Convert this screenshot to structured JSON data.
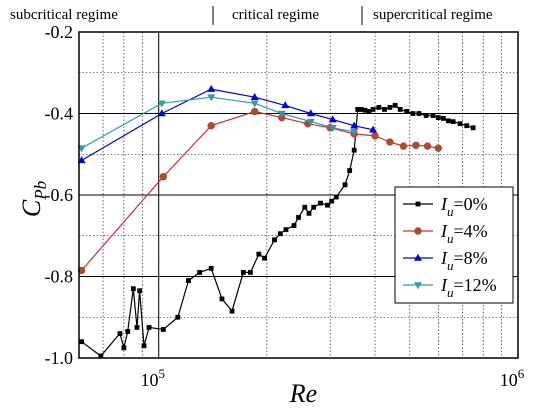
{
  "chart_data": {
    "type": "line",
    "xscale": "log",
    "xlim": [
      60000,
      1000000
    ],
    "ylim": [
      -1.0,
      -0.2
    ],
    "xlabel": "Re",
    "ylabel": {
      "main": "C",
      "sub": "Pb"
    },
    "yticks": [
      {
        "value": -1.0,
        "label": "-1.0"
      },
      {
        "value": -0.8,
        "label": "-0.8"
      },
      {
        "value": -0.6,
        "label": "-0.6"
      },
      {
        "value": -0.4,
        "label": "-0.4"
      },
      {
        "value": -0.2,
        "label": "-0.2"
      }
    ],
    "xticks": [
      {
        "value": 100000,
        "base": "10",
        "exp": "5"
      },
      {
        "value": 1000000,
        "base": "10",
        "exp": "6"
      }
    ],
    "regimes": [
      {
        "label": "subcritical regime",
        "x_end": 130000
      },
      {
        "label": "critical regime",
        "x_end": 400000
      },
      {
        "label": "supercritical regime"
      }
    ],
    "grid": true,
    "legend_position": "right-middle",
    "series": [
      {
        "name": "0%",
        "legend": {
          "var": "I",
          "sub": "u",
          "text": "=0%"
        },
        "color": "#000000",
        "marker": "square",
        "points": [
          [
            61000,
            -0.96
          ],
          [
            69000,
            -0.995
          ],
          [
            78000,
            -0.94
          ],
          [
            80000,
            -0.975
          ],
          [
            82000,
            -0.935
          ],
          [
            85000,
            -0.83
          ],
          [
            87000,
            -0.925
          ],
          [
            88500,
            -0.835
          ],
          [
            91000,
            -0.97
          ],
          [
            94000,
            -0.925
          ],
          [
            103000,
            -0.93
          ],
          [
            113000,
            -0.9
          ],
          [
            121000,
            -0.81
          ],
          [
            130000,
            -0.79
          ],
          [
            140000,
            -0.78
          ],
          [
            150000,
            -0.855
          ],
          [
            160000,
            -0.885
          ],
          [
            172000,
            -0.79
          ],
          [
            180000,
            -0.79
          ],
          [
            190000,
            -0.745
          ],
          [
            197000,
            -0.755
          ],
          [
            210000,
            -0.71
          ],
          [
            218000,
            -0.695
          ],
          [
            226000,
            -0.685
          ],
          [
            238000,
            -0.675
          ],
          [
            245000,
            -0.655
          ],
          [
            255000,
            -0.63
          ],
          [
            262000,
            -0.645
          ],
          [
            270000,
            -0.63
          ],
          [
            282000,
            -0.62
          ],
          [
            295000,
            -0.625
          ],
          [
            303000,
            -0.615
          ],
          [
            312000,
            -0.605
          ],
          [
            330000,
            -0.575
          ],
          [
            340000,
            -0.54
          ],
          [
            350000,
            -0.49
          ],
          [
            358000,
            -0.39
          ],
          [
            366000,
            -0.39
          ],
          [
            375000,
            -0.392
          ],
          [
            385000,
            -0.395
          ],
          [
            395000,
            -0.39
          ],
          [
            410000,
            -0.385
          ],
          [
            425000,
            -0.39
          ],
          [
            440000,
            -0.385
          ],
          [
            455000,
            -0.38
          ],
          [
            470000,
            -0.39
          ],
          [
            490000,
            -0.395
          ],
          [
            510000,
            -0.4
          ],
          [
            530000,
            -0.4
          ],
          [
            555000,
            -0.405
          ],
          [
            580000,
            -0.405
          ],
          [
            600000,
            -0.41
          ],
          [
            620000,
            -0.412
          ],
          [
            640000,
            -0.418
          ],
          [
            660000,
            -0.42
          ],
          [
            690000,
            -0.425
          ],
          [
            720000,
            -0.43
          ],
          [
            750000,
            -0.435
          ]
        ]
      },
      {
        "name": "4%",
        "legend": {
          "var": "I",
          "sub": "u",
          "text": "=4%"
        },
        "color": "#cc3333",
        "marker": "circle",
        "points": [
          [
            61000,
            -0.785
          ],
          [
            103000,
            -0.555
          ],
          [
            140000,
            -0.43
          ],
          [
            185000,
            -0.395
          ],
          [
            220000,
            -0.41
          ],
          [
            260000,
            -0.425
          ],
          [
            300000,
            -0.435
          ],
          [
            350000,
            -0.45
          ],
          [
            400000,
            -0.455
          ],
          [
            440000,
            -0.47
          ],
          [
            480000,
            -0.48
          ],
          [
            520000,
            -0.478
          ],
          [
            560000,
            -0.48
          ],
          [
            600000,
            -0.485
          ]
        ]
      },
      {
        "name": "8%",
        "legend": {
          "var": "I",
          "sub": "u",
          "text": "=8%"
        },
        "color": "#0000dd",
        "marker": "triangle-up",
        "points": [
          [
            61000,
            -0.515
          ],
          [
            102000,
            -0.4
          ],
          [
            140000,
            -0.34
          ],
          [
            185000,
            -0.36
          ],
          [
            225000,
            -0.38
          ],
          [
            265000,
            -0.4
          ],
          [
            305000,
            -0.415
          ],
          [
            350000,
            -0.43
          ],
          [
            395000,
            -0.44
          ]
        ]
      },
      {
        "name": "12%",
        "legend": {
          "var": "I",
          "sub": "u",
          "text": "=12%"
        },
        "color": "#3399aa",
        "marker": "triangle-down",
        "points": [
          [
            61000,
            -0.485
          ],
          [
            102000,
            -0.375
          ],
          [
            140000,
            -0.36
          ],
          [
            185000,
            -0.375
          ],
          [
            220000,
            -0.4
          ],
          [
            265000,
            -0.42
          ],
          [
            305000,
            -0.435
          ],
          [
            350000,
            -0.445
          ]
        ]
      }
    ]
  }
}
